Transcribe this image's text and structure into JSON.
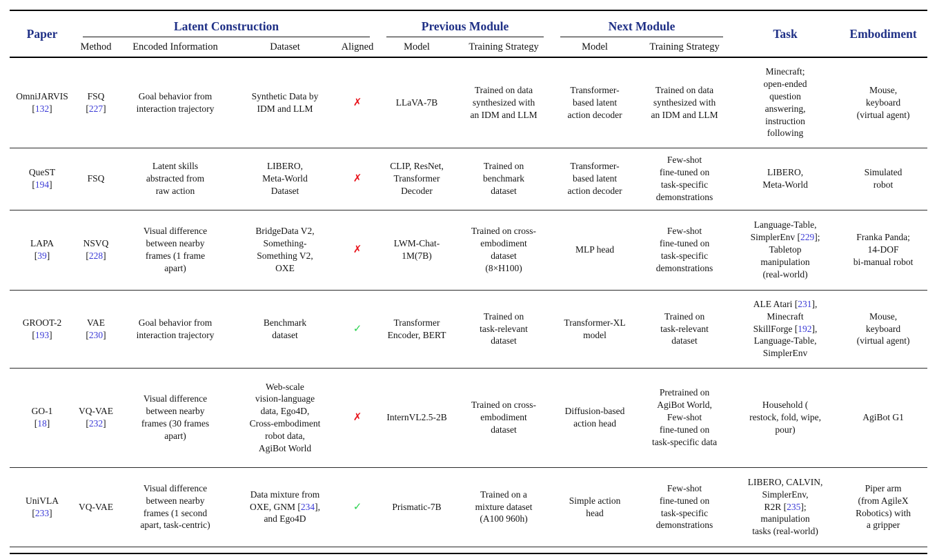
{
  "colors": {
    "header_blue": "#1f3086",
    "citation_blue": "#3a3ad6",
    "cross_red": "#e8141c",
    "check_green": "#2ad24f"
  },
  "header": {
    "paper": "Paper",
    "groups": [
      {
        "label": "Latent Construction",
        "span": 4
      },
      {
        "label": "Previous Module",
        "span": 2
      },
      {
        "label": "Next Module",
        "span": 2
      }
    ],
    "subheaders": [
      "Method",
      "Encoded Information",
      "Dataset",
      "Aligned",
      "Model",
      "Training Strategy",
      "Model",
      "Training Strategy"
    ],
    "task": "Task",
    "embodiment": "Embodiment"
  },
  "rows": [
    {
      "paper": "OmniJARVIS\n[132]",
      "method": "FSQ\n[227]",
      "encoded_information": "Goal behavior from\ninteraction trajectory",
      "dataset": "Synthetic Data by\nIDM and LLM",
      "aligned": "✗",
      "previous_model": "LLaVA-7B",
      "previous_training": "Trained on data\nsynthesized with\nan IDM and LLM",
      "next_model": "Transformer-\nbased latent\naction decoder",
      "next_training": "Trained on data\nsynthesized with\nan IDM and LLM",
      "task": "Minecraft;\nopen-ended\nquestion\nanswering,\ninstruction\nfollowing",
      "embodiment": "Mouse,\nkeyboard\n(virtual agent)"
    },
    {
      "paper": "QueST\n[194]",
      "method": "FSQ",
      "encoded_information": "Latent skills\nabstracted from\nraw action",
      "dataset": "LIBERO,\nMeta-World\nDataset",
      "aligned": "✗",
      "previous_model": "CLIP, ResNet,\nTransformer\nDecoder",
      "previous_training": "Trained on\nbenchmark\ndataset",
      "next_model": "Transformer-\nbased latent\naction decoder",
      "next_training": "Few-shot\nfine-tuned on\ntask-specific\ndemonstrations",
      "task": "LIBERO,\nMeta-World",
      "embodiment": "Simulated\nrobot"
    },
    {
      "paper": "LAPA\n[39]",
      "method": "NSVQ\n[228]",
      "encoded_information": "Visual difference\nbetween nearby\nframes (1 frame\napart)",
      "dataset": "BridgeData V2,\nSomething-\nSomething V2,\nOXE",
      "aligned": "✗",
      "previous_model": "LWM-Chat-\n1M(7B)",
      "previous_training": "Trained on cross-\nembodiment\ndataset\n(8×H100)",
      "next_model": "MLP head",
      "next_training": "Few-shot\nfine-tuned on\ntask-specific\ndemonstrations",
      "task": "Language-Table,\nSimplerEnv [229];\nTabletop\nmanipulation\n(real-world)",
      "embodiment": "Franka Panda;\n14-DOF\nbi-manual robot"
    },
    {
      "paper": "GROOT-2\n[193]",
      "method": "VAE\n[230]",
      "encoded_information": "Goal behavior from\ninteraction trajectory",
      "dataset": "Benchmark\ndataset",
      "aligned": "✓",
      "previous_model": "Transformer\nEncoder, BERT",
      "previous_training": "Trained on\ntask-relevant\ndataset",
      "next_model": "Transformer-XL\nmodel",
      "next_training": "Trained on\ntask-relevant\ndataset",
      "task": "ALE Atari [231],\nMinecraft\nSkillForge [192],\nLanguage-Table,\nSimplerEnv",
      "embodiment": "Mouse,\nkeyboard\n(virtual agent)"
    },
    {
      "paper": "GO-1\n[18]",
      "method": "VQ-VAE\n[232]",
      "encoded_information": "Visual difference\nbetween nearby\nframes (30 frames\napart)",
      "dataset": "Web-scale\nvision-language\ndata, Ego4D,\nCross-embodiment\nrobot data,\nAgiBot World",
      "aligned": "✗",
      "previous_model": "InternVL2.5-2B",
      "previous_training": "Trained on cross-\nembodiment\ndataset",
      "next_model": "Diffusion-based\naction head",
      "next_training": "Pretrained on\nAgiBot World,\nFew-shot\nfine-tuned on\ntask-specific data",
      "task": "Household (\nrestock, fold, wipe,\npour)",
      "embodiment": "AgiBot G1"
    },
    {
      "paper": "UniVLA\n[233]",
      "method": "VQ-VAE",
      "encoded_information": "Visual difference\nbetween nearby\nframes (1 second\napart, task-centric)",
      "dataset": "Data mixture from\nOXE, GNM [234],\nand Ego4D",
      "aligned": "✓",
      "previous_model": "Prismatic-7B",
      "previous_training": "Trained on a\nmixture dataset\n(A100 960h)",
      "next_model": "Simple action\nhead",
      "next_training": "Few-shot\nfine-tuned on\ntask-specific\ndemonstrations",
      "task": "LIBERO, CALVIN,\nSimplerEnv,\nR2R [235];\nmanipulation\ntasks (real-world)",
      "embodiment": "Piper arm\n(from AgileX\nRobotics) with\na gripper"
    }
  ]
}
